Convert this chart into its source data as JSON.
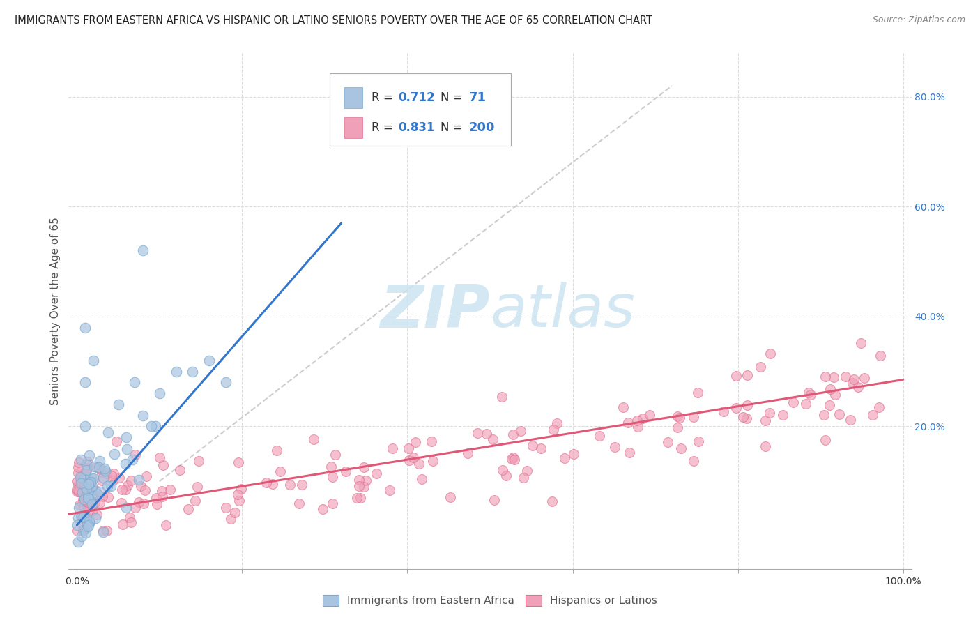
{
  "title": "IMMIGRANTS FROM EASTERN AFRICA VS HISPANIC OR LATINO SENIORS POVERTY OVER THE AGE OF 65 CORRELATION CHART",
  "source": "Source: ZipAtlas.com",
  "ylabel": "Seniors Poverty Over the Age of 65",
  "xlim": [
    -0.01,
    1.01
  ],
  "ylim": [
    -0.06,
    0.88
  ],
  "blue_R": 0.712,
  "blue_N": 71,
  "pink_R": 0.831,
  "pink_N": 200,
  "blue_color": "#a8c4e0",
  "pink_color": "#f0a0b8",
  "blue_edge_color": "#7aaad0",
  "pink_edge_color": "#e07090",
  "blue_line_color": "#3377cc",
  "pink_line_color": "#e05878",
  "diag_line_color": "#c8c8c8",
  "watermark_color": "#cce4f0",
  "legend_label_blue": "Immigrants from Eastern Africa",
  "legend_label_pink": "Hispanics or Latinos",
  "background_color": "#ffffff",
  "grid_color": "#dddddd",
  "title_fontsize": 10.5,
  "axis_label_fontsize": 11,
  "tick_fontsize": 10,
  "r_text_color": "#333333",
  "r_value_color": "#3377cc",
  "ytick_color": "#3377cc",
  "xtick_color": "#333333"
}
